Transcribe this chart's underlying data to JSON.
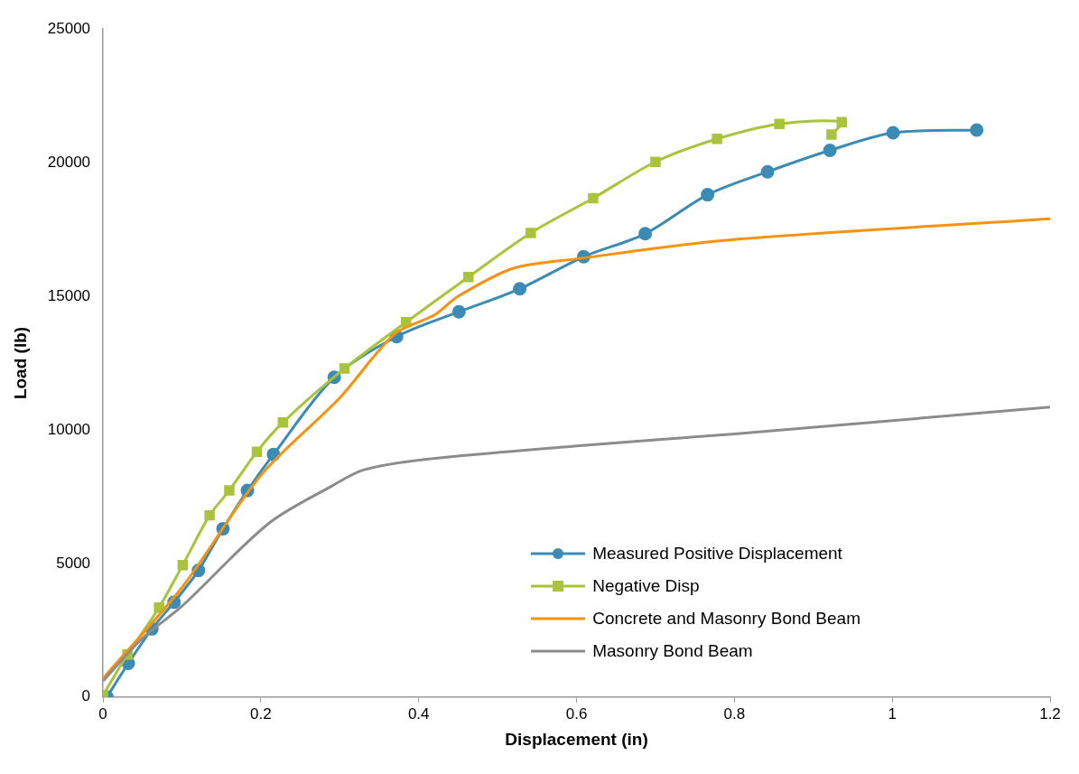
{
  "chart_data": {
    "type": "line",
    "xlabel": "Displacement (in)",
    "ylabel": "Load (lb)",
    "xlim": [
      0,
      1.2
    ],
    "xticks": [
      0,
      0.2,
      0.4,
      0.6,
      0.8,
      1,
      1.2
    ],
    "ylim": [
      0,
      25000
    ],
    "yticks": [
      0,
      5000,
      10000,
      15000,
      20000,
      25000
    ],
    "grid": false,
    "legend": "bottom right",
    "series": [
      {
        "name": "Measured Positive Displacement",
        "color": "#3c8bb5",
        "marker": "circle",
        "x": [
          0.005,
          0.032,
          0.062,
          0.09,
          0.121,
          0.152,
          0.183,
          0.216,
          0.293,
          0.372,
          0.451,
          0.528,
          0.609,
          0.687,
          0.766,
          0.842,
          0.921,
          1.001,
          1.107
        ],
        "values": [
          0,
          1260,
          2550,
          3550,
          4740,
          6300,
          7730,
          9080,
          11970,
          13490,
          14420,
          15280,
          16480,
          17340,
          18800,
          19660,
          20460,
          21120,
          21220
        ]
      },
      {
        "name": "Negative Disp",
        "color": "#a9c33a",
        "marker": "square",
        "x": [
          0,
          0.031,
          0.071,
          0.101,
          0.135,
          0.16,
          0.195,
          0.228,
          0.306,
          0.384,
          0.463,
          0.542,
          0.621,
          0.7,
          0.778,
          0.857,
          0.936,
          0.923
        ],
        "values": [
          70,
          1590,
          3350,
          4940,
          6800,
          7730,
          9180,
          10280,
          12300,
          14030,
          15720,
          17370,
          18670,
          20030,
          20890,
          21450,
          21520,
          21050
        ]
      },
      {
        "name": "Concrete and Masonry Bond Beam",
        "color": "#f5920e",
        "marker": "none",
        "x": [
          0,
          0.1,
          0.2,
          0.3,
          0.37,
          0.42,
          0.45,
          0.52,
          0.6,
          0.79,
          1.2
        ],
        "values": [
          700,
          4100,
          8300,
          11200,
          13600,
          14300,
          15000,
          16050,
          16400,
          17100,
          17900
        ]
      },
      {
        "name": "Masonry Bond Beam",
        "color": "#8c8c8c",
        "marker": "none",
        "x": [
          0,
          0.05,
          0.1,
          0.21,
          0.29,
          0.33,
          0.41,
          0.6,
          0.8,
          1.2
        ],
        "values": [
          600,
          2200,
          3400,
          6500,
          7900,
          8500,
          8900,
          9400,
          9850,
          10850
        ]
      }
    ]
  }
}
